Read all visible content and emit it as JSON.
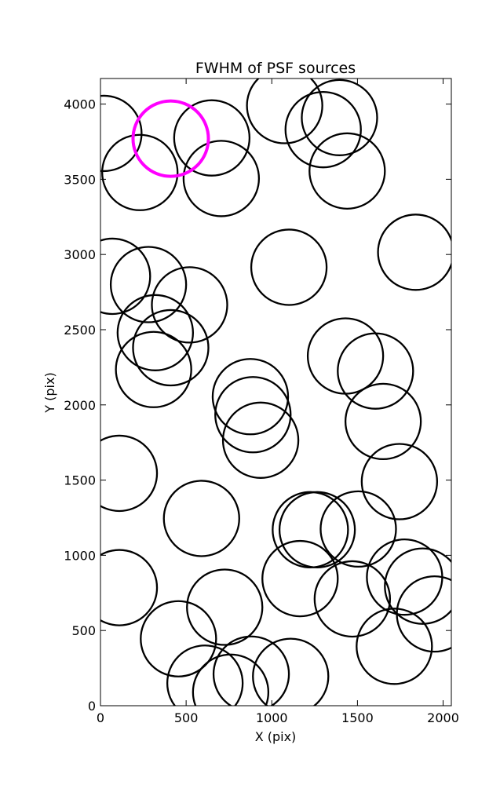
{
  "chart_data": {
    "type": "scatter",
    "marker": "circle",
    "title": "FWHM of PSF sources",
    "xlabel": "X (pix)",
    "ylabel": "Y (pix)",
    "xlim": [
      0,
      2048
    ],
    "ylim": [
      0,
      4170
    ],
    "xticks": [
      0,
      500,
      1000,
      1500,
      2000
    ],
    "yticks": [
      0,
      500,
      1000,
      1500,
      2000,
      2500,
      3000,
      3500,
      4000
    ],
    "grid": false,
    "circle_radius": 220,
    "series": [
      {
        "color": "#000000",
        "points": [
          {
            "x": 20,
            "y": 3805
          },
          {
            "x": 230,
            "y": 3545
          },
          {
            "x": 650,
            "y": 3775
          },
          {
            "x": 705,
            "y": 3505
          },
          {
            "x": 1075,
            "y": 3990
          },
          {
            "x": 1300,
            "y": 3830
          },
          {
            "x": 1395,
            "y": 3910
          },
          {
            "x": 1440,
            "y": 3555
          },
          {
            "x": 1840,
            "y": 3015
          },
          {
            "x": 1100,
            "y": 2915
          },
          {
            "x": 70,
            "y": 2855
          },
          {
            "x": 280,
            "y": 2800
          },
          {
            "x": 520,
            "y": 2665
          },
          {
            "x": 320,
            "y": 2480
          },
          {
            "x": 410,
            "y": 2380
          },
          {
            "x": 310,
            "y": 2235
          },
          {
            "x": 1430,
            "y": 2325
          },
          {
            "x": 1605,
            "y": 2225
          },
          {
            "x": 1650,
            "y": 1890
          },
          {
            "x": 875,
            "y": 2055
          },
          {
            "x": 890,
            "y": 1935
          },
          {
            "x": 935,
            "y": 1765
          },
          {
            "x": 110,
            "y": 1545
          },
          {
            "x": 1745,
            "y": 1490
          },
          {
            "x": 590,
            "y": 1245
          },
          {
            "x": 1505,
            "y": 1175
          },
          {
            "x": 1225,
            "y": 1170
          },
          {
            "x": 1265,
            "y": 1170
          },
          {
            "x": 110,
            "y": 785
          },
          {
            "x": 1165,
            "y": 845
          },
          {
            "x": 1470,
            "y": 710
          },
          {
            "x": 1775,
            "y": 855
          },
          {
            "x": 1880,
            "y": 795
          },
          {
            "x": 1950,
            "y": 610
          },
          {
            "x": 725,
            "y": 655
          },
          {
            "x": 455,
            "y": 445
          },
          {
            "x": 1715,
            "y": 395
          },
          {
            "x": 610,
            "y": 150
          },
          {
            "x": 880,
            "y": 210
          },
          {
            "x": 1110,
            "y": 195
          },
          {
            "x": 760,
            "y": 90
          }
        ]
      },
      {
        "color": "#ff00ff",
        "points": [
          {
            "x": 410,
            "y": 3770
          }
        ]
      }
    ]
  }
}
